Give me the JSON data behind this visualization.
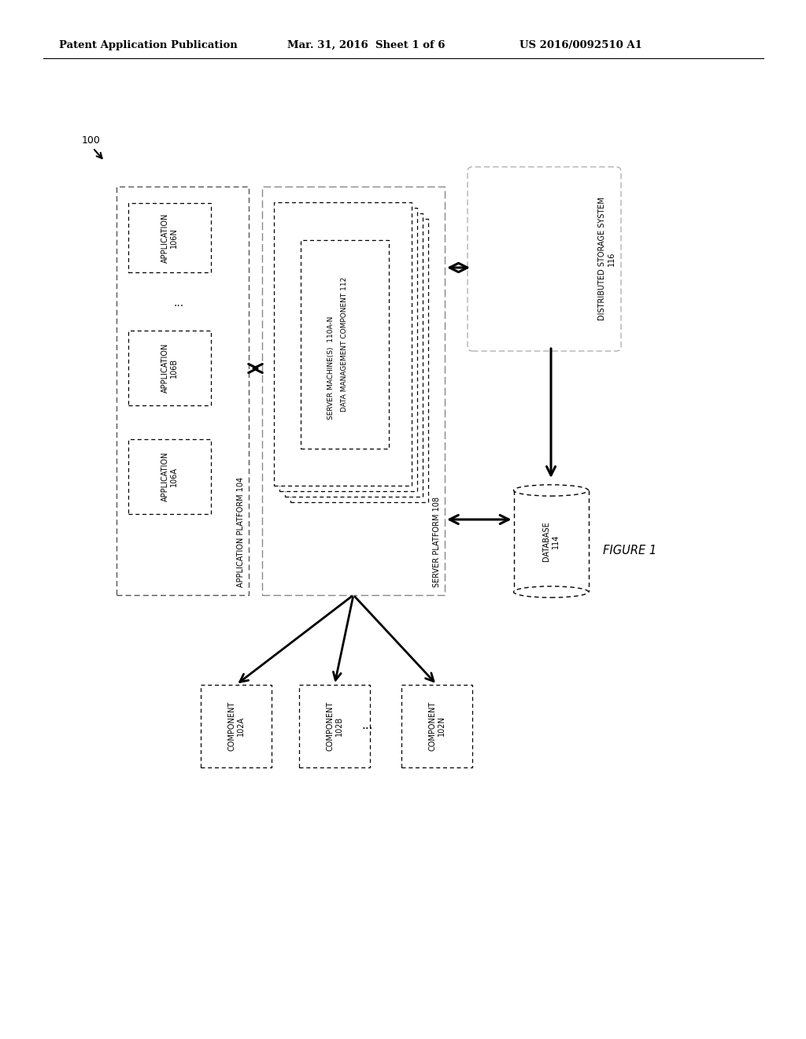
{
  "bg_color": "#ffffff",
  "header_left": "Patent Application Publication",
  "header_mid": "Mar. 31, 2016  Sheet 1 of 6",
  "header_right": "US 2016/0092510 A1",
  "figure_label": "FIGURE 1",
  "label_100": "100",
  "app_platform_label": "APPLICATION PLATFORM 104",
  "server_platform_label": "SERVER PLATFORM 108",
  "server_machines_label": "SERVER MACHINE(S)  110A-N",
  "data_mgmt_label": "DATA MANAGEMENT COMPONENT 112",
  "dist_storage_label": "DISTRIBUTED STORAGE SYSTEM\n116",
  "database_label": "DATABASE\n114",
  "app106n_label": "APPLICATION\n106N",
  "app106b_label": "APPLICATION\n106B",
  "app106a_label": "APPLICATION\n106A",
  "comp102a_label": "COMPONENT\n102A",
  "comp102b_label": "COMPONENT\n102B",
  "comp102n_label": "COMPONENT\n102N",
  "dots": "..."
}
